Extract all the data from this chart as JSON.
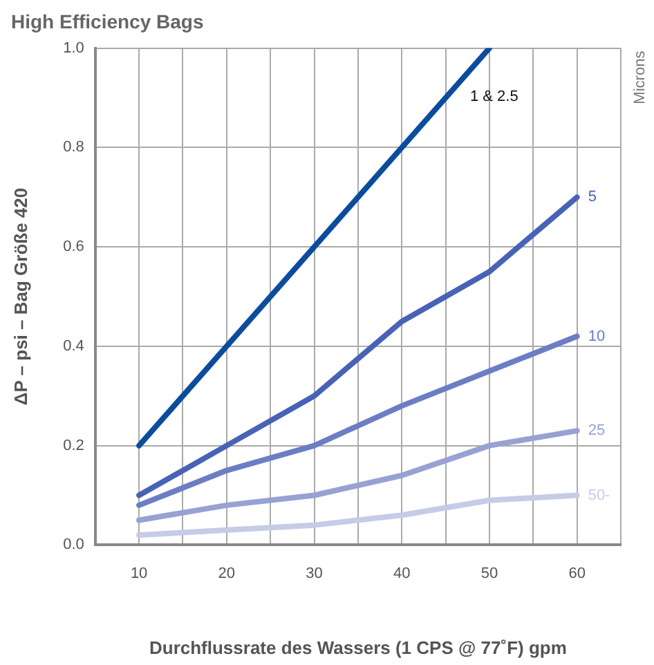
{
  "chart_data": {
    "type": "line",
    "title": "High Efficiency Bags",
    "xlabel": "Durchflussrate des Wassers (1 CPS @ 77˚F) gpm",
    "ylabel": "ΔP – psi – Bag Größe 420",
    "legend_title": "Microns",
    "x": [
      10,
      20,
      30,
      40,
      50,
      60
    ],
    "series": [
      {
        "name": "1 & 2.5",
        "color": "#0b4c9e",
        "values": [
          0.2,
          0.4,
          0.6,
          0.8,
          1.0,
          null
        ]
      },
      {
        "name": "5",
        "color": "#4863b5",
        "values": [
          0.1,
          0.2,
          0.3,
          0.45,
          0.55,
          0.7
        ]
      },
      {
        "name": "10",
        "color": "#6c7ec3",
        "values": [
          0.08,
          0.15,
          0.2,
          0.28,
          0.35,
          0.42
        ]
      },
      {
        "name": "25",
        "color": "#98a1d3",
        "values": [
          0.05,
          0.08,
          0.1,
          0.14,
          0.2,
          0.23
        ]
      },
      {
        "name": "50-",
        "color": "#c6cbe8",
        "values": [
          0.02,
          0.03,
          0.04,
          0.06,
          0.09,
          0.1
        ]
      }
    ],
    "xlim": [
      5,
      65
    ],
    "xticks": [
      {
        "value": 5,
        "label": null
      },
      10,
      {
        "value": 15,
        "label": null
      },
      20,
      {
        "value": 25,
        "label": null
      },
      30,
      {
        "value": 35,
        "label": null
      },
      40,
      {
        "value": 45,
        "label": null
      },
      50,
      {
        "value": 55,
        "label": null
      },
      60,
      {
        "value": 65,
        "label": null
      }
    ],
    "ylim": [
      0,
      1
    ],
    "yticks": [
      {
        "value": 0,
        "label": "0.0"
      },
      0.2,
      0.4,
      0.6,
      0.8,
      {
        "value": 1,
        "label": "1.0"
      }
    ],
    "grid": true,
    "legend": false,
    "marker": "none",
    "line_style": "solid"
  }
}
